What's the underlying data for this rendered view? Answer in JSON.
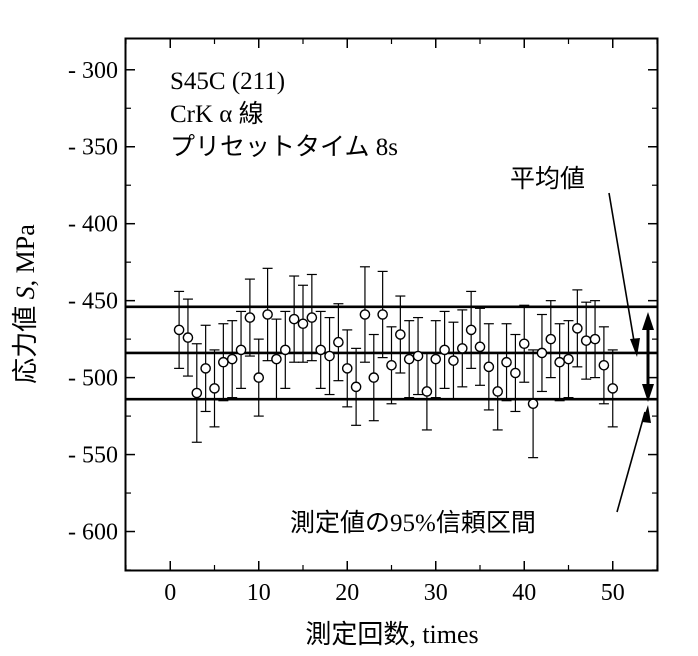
{
  "chart_data": {
    "type": "scatter",
    "title": "",
    "xlabel": "測定回数, times",
    "ylabel_prefix": "応力値 ",
    "ylabel_symbol": "S",
    "ylabel_suffix": ", MPa",
    "xlim": [
      -5,
      55
    ],
    "ylim": [
      -625,
      -280
    ],
    "x_ticks": [
      0,
      10,
      20,
      30,
      40,
      50
    ],
    "y_ticks": [
      -300,
      -350,
      -400,
      -450,
      -500,
      -550,
      -600
    ],
    "y_tick_labels": [
      "- 300",
      "- 350",
      "- 400",
      "- 450",
      "- 500",
      "- 550",
      "- 600"
    ],
    "grid": false,
    "annotations": {
      "lines": [
        "S45C (211)",
        "CrK α 線",
        "プリセットタイム 8s"
      ],
      "mean_label": "平均値",
      "ci_label": "測定値の95%信頼区間"
    },
    "reference_lines": {
      "mean": -484,
      "ci_upper": -454,
      "ci_lower": -514
    },
    "series": [
      {
        "x": [
          1,
          2,
          3,
          4,
          5,
          6,
          7,
          8,
          9,
          10,
          11,
          12,
          13,
          14,
          15,
          16,
          17,
          18,
          19,
          20,
          21,
          22,
          23,
          24,
          25,
          26,
          27,
          28,
          29,
          30,
          31,
          32,
          33,
          34,
          35,
          36,
          37,
          38,
          39,
          40,
          41,
          42,
          43,
          44,
          45,
          46,
          47,
          48,
          49,
          50
        ],
        "values": [
          -469,
          -474,
          -510,
          -494,
          -507,
          -490,
          -488,
          -482,
          -461,
          -500,
          -459,
          -488,
          -482,
          -462,
          -465,
          -461,
          -482,
          -486,
          -477,
          -494,
          -506,
          -459,
          -500,
          -459,
          -492,
          -472,
          -488,
          -486,
          -509,
          -488,
          -482,
          -489,
          -481,
          -469,
          -480,
          -493,
          -509,
          -490,
          -497,
          -478,
          -517,
          -484,
          -475,
          -490,
          -488,
          -468,
          -476,
          -475,
          -492,
          -507
        ],
        "errors": [
          25,
          25,
          32,
          28,
          25,
          25,
          25,
          25,
          25,
          25,
          30,
          26,
          25,
          28,
          25,
          28,
          25,
          25,
          25,
          25,
          25,
          31,
          28,
          28,
          25,
          25,
          25,
          25,
          25,
          25,
          25,
          25,
          25,
          25,
          25,
          28,
          25,
          25,
          25,
          25,
          35,
          25,
          25,
          25,
          25,
          25,
          25,
          25,
          25,
          25
        ]
      }
    ]
  }
}
